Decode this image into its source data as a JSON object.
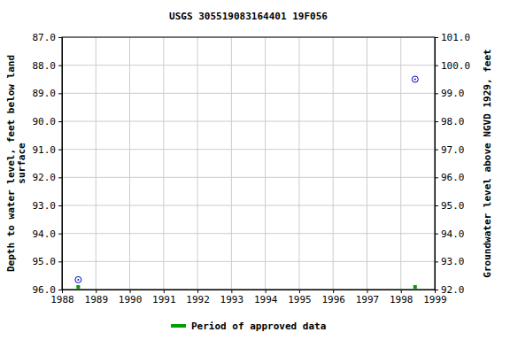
{
  "chart_data": {
    "type": "scatter",
    "title": "USGS 305519083164401 19F056",
    "y_label": [
      "Depth to water level, feet below land",
      "surface"
    ],
    "y2_label": "Groundwater level above NGVD 1929, feet",
    "x": [
      1988.48,
      1998.42
    ],
    "series": [
      {
        "color": "#0000cc",
        "marker": "circle-open",
        "values": [
          95.65,
          88.5
        ]
      },
      {
        "name": "Period of approved data",
        "color": "#00a000",
        "marker": "square",
        "values": [
          96,
          96
        ]
      }
    ],
    "xlim": [
      1988,
      1999
    ],
    "xticks": [
      1988,
      1989,
      1990,
      1991,
      1992,
      1993,
      1994,
      1995,
      1996,
      1997,
      1998,
      1999
    ],
    "ylim": [
      96,
      87
    ],
    "yticks": [
      {
        "value": 87,
        "label": "87.0"
      },
      {
        "value": 88,
        "label": "88.0"
      },
      {
        "value": 89,
        "label": "89.0"
      },
      {
        "value": 90,
        "label": "90.0"
      },
      {
        "value": 91,
        "label": "91.0"
      },
      {
        "value": 92,
        "label": "92.0"
      },
      {
        "value": 93,
        "label": "93.0"
      },
      {
        "value": 94,
        "label": "94.0"
      },
      {
        "value": 95,
        "label": "95.0"
      },
      {
        "value": 96,
        "label": "96.0"
      }
    ],
    "y2lim": [
      92,
      101
    ],
    "y2ticks": [
      {
        "value": 92,
        "label": "92.0"
      },
      {
        "value": 93,
        "label": "93.0"
      },
      {
        "value": 94,
        "label": "94.0"
      },
      {
        "value": 95,
        "label": "95.0"
      },
      {
        "value": 96,
        "label": "96.0"
      },
      {
        "value": 97,
        "label": "97.0"
      },
      {
        "value": 98,
        "label": "98.0"
      },
      {
        "value": 99,
        "label": "99.0"
      },
      {
        "value": 100,
        "label": "100.0"
      },
      {
        "value": 101,
        "label": "101.0"
      }
    ],
    "grid": true,
    "legend": "bottom"
  }
}
